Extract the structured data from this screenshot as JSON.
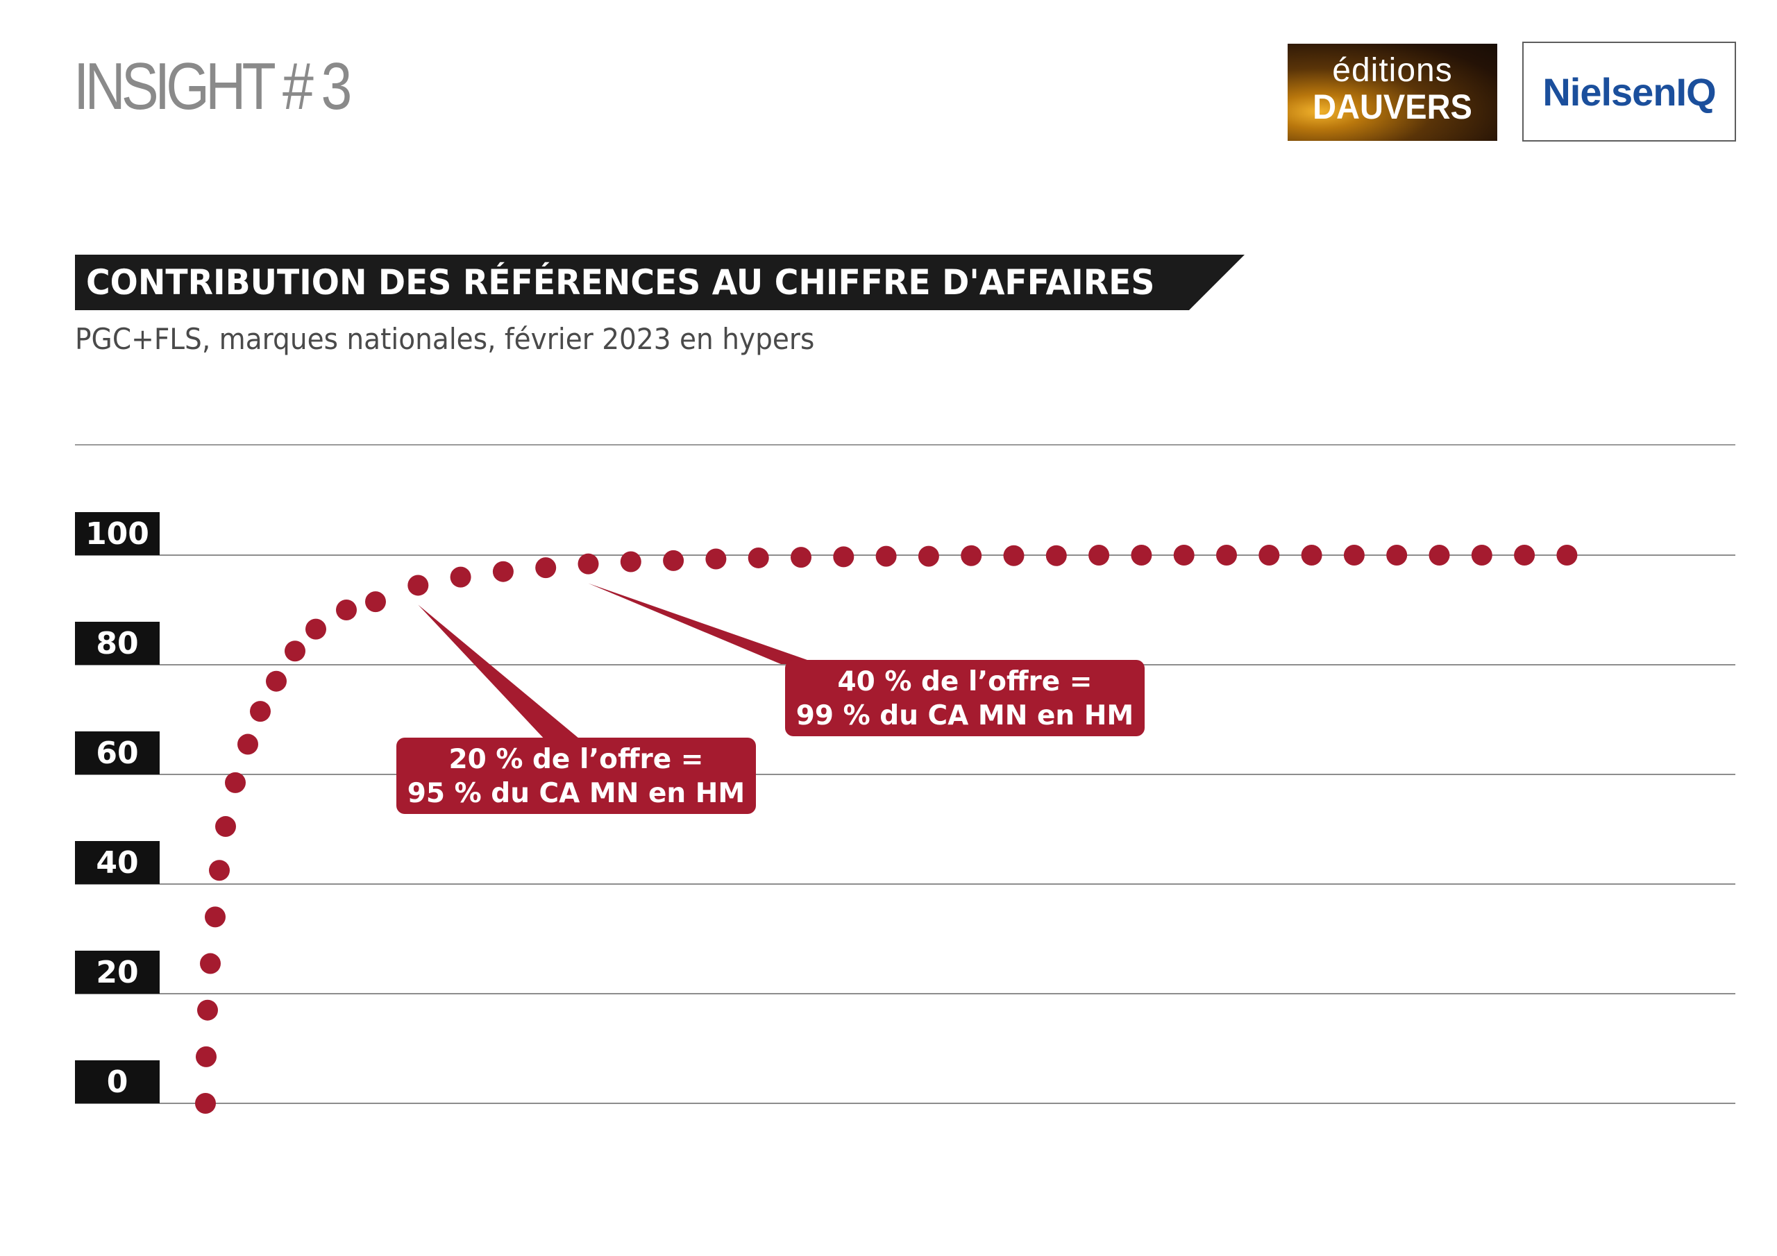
{
  "header": {
    "title": "INSIGHT # 3",
    "logos": {
      "dauvers_line1": "éditions",
      "dauvers_line2": "DAUVERS",
      "nielsen": "NielsenIQ"
    }
  },
  "colors": {
    "accent": "#a51b2f",
    "banner": "#1b1b1b",
    "nielsen_blue": "#1b4f9c"
  },
  "chart_data": {
    "type": "scatter",
    "style": "dotted curve",
    "title": "CONTRIBUTION DES RÉFÉRENCES AU CHIFFRE D'AFFAIRES",
    "subtitle": "PGC+FLS, marques nationales, février 2023 en hypers",
    "xlabel": "",
    "ylabel": "",
    "ylim": [
      0,
      100
    ],
    "yticks": [
      0,
      20,
      40,
      60,
      80,
      100
    ],
    "grid": true,
    "x_axis_labeled": false,
    "values": [
      0,
      8.5,
      17,
      25.5,
      34,
      42.5,
      50.5,
      58.5,
      65.5,
      71.5,
      77,
      82.5,
      86.5,
      90,
      91.5,
      94.5,
      96,
      97,
      97.7,
      98.4,
      98.8,
      99,
      99.3,
      99.5,
      99.6,
      99.7,
      99.8,
      99.8,
      99.9,
      99.9,
      99.9,
      100,
      100,
      100,
      100,
      100,
      100,
      100,
      100,
      100,
      100,
      100,
      100
    ],
    "annotations": [
      {
        "lines": [
          "20 % de l’offre =",
          "95 % du CA MN en HM"
        ],
        "points_to_index": 15
      },
      {
        "lines": [
          "40 % de l’offre =",
          "99 % du CA MN en HM"
        ],
        "points_to_index": 19
      }
    ]
  }
}
